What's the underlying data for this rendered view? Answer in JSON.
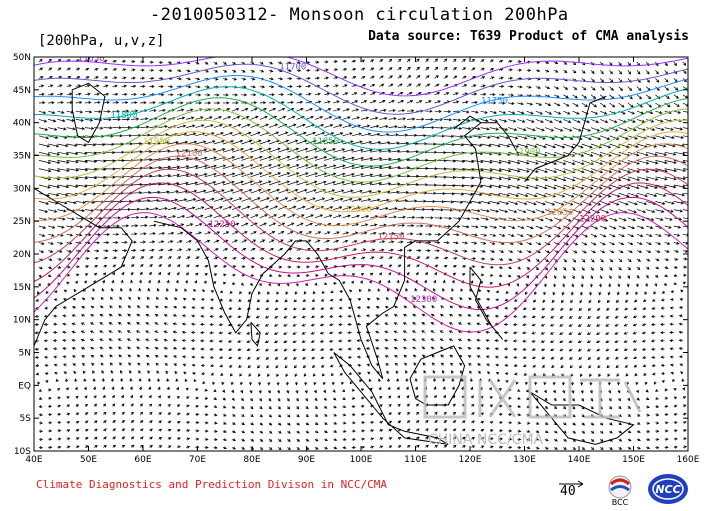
{
  "title": "-2010050312- Monsoon circulation 200hPa",
  "variables_label": "[200hPa, u,v,z]",
  "data_source": "Data source: T639 Product of CMA analysis",
  "footer": "Climate Diagnostics and Prediction Divison in NCC/CMA",
  "reference_vector_label": "40",
  "logos": [
    "BCC",
    "NCC"
  ],
  "map": {
    "lat_labels": [
      "50N",
      "45N",
      "40N",
      "35N",
      "30N",
      "25N",
      "20N",
      "15N",
      "10N",
      "5N",
      "EQ",
      "5S",
      "10S"
    ],
    "lon_labels": [
      "40E",
      "50E",
      "60E",
      "70E",
      "80E",
      "90E",
      "100E",
      "110E",
      "120E",
      "130E",
      "140E",
      "150E",
      "160E"
    ],
    "lat_range": [
      -10,
      50
    ],
    "lon_range": [
      40,
      160
    ]
  },
  "contours": [
    {
      "label": "11650",
      "color": "#9b30ff"
    },
    {
      "label": "11700",
      "color": "#6a5acd"
    },
    {
      "label": "11750",
      "color": "#1e90ff"
    },
    {
      "label": "11800",
      "color": "#00b0b0"
    },
    {
      "label": "11850",
      "color": "#20b050"
    },
    {
      "label": "11900",
      "color": "#7cc040"
    },
    {
      "label": "11950",
      "color": "#c0c040"
    },
    {
      "label": "12000",
      "color": "#e0b040"
    },
    {
      "label": "12050",
      "color": "#e09050"
    },
    {
      "label": "12100",
      "color": "#d07060"
    },
    {
      "label": "12150",
      "color": "#c04060"
    },
    {
      "label": "12200",
      "color": "#c02070"
    },
    {
      "label": "12250",
      "color": "#c01090"
    },
    {
      "label": "12300",
      "color": "#d020b0"
    }
  ],
  "visible_labels": [
    {
      "text": "11650",
      "color": "#9b30ff"
    },
    {
      "text": "11700",
      "color": "#6a5acd"
    },
    {
      "text": "11750",
      "color": "#1e90ff"
    },
    {
      "text": "11800",
      "color": "#00b0b0"
    },
    {
      "text": "11850",
      "color": "#20b050"
    },
    {
      "text": "11900",
      "color": "#7cc040"
    },
    {
      "text": "11950",
      "color": "#c0c040"
    },
    {
      "text": "12000",
      "color": "#e0b040"
    },
    {
      "text": "12050",
      "color": "#e09050"
    },
    {
      "text": "12100",
      "color": "#d07060"
    },
    {
      "text": "12150",
      "color": "#c04060"
    },
    {
      "text": "12200",
      "color": "#c02070"
    },
    {
      "text": "12250",
      "color": "#c01090"
    },
    {
      "text": "12300",
      "color": "#d020b0"
    }
  ],
  "watermark_text": "CHINA NCC/CMA"
}
